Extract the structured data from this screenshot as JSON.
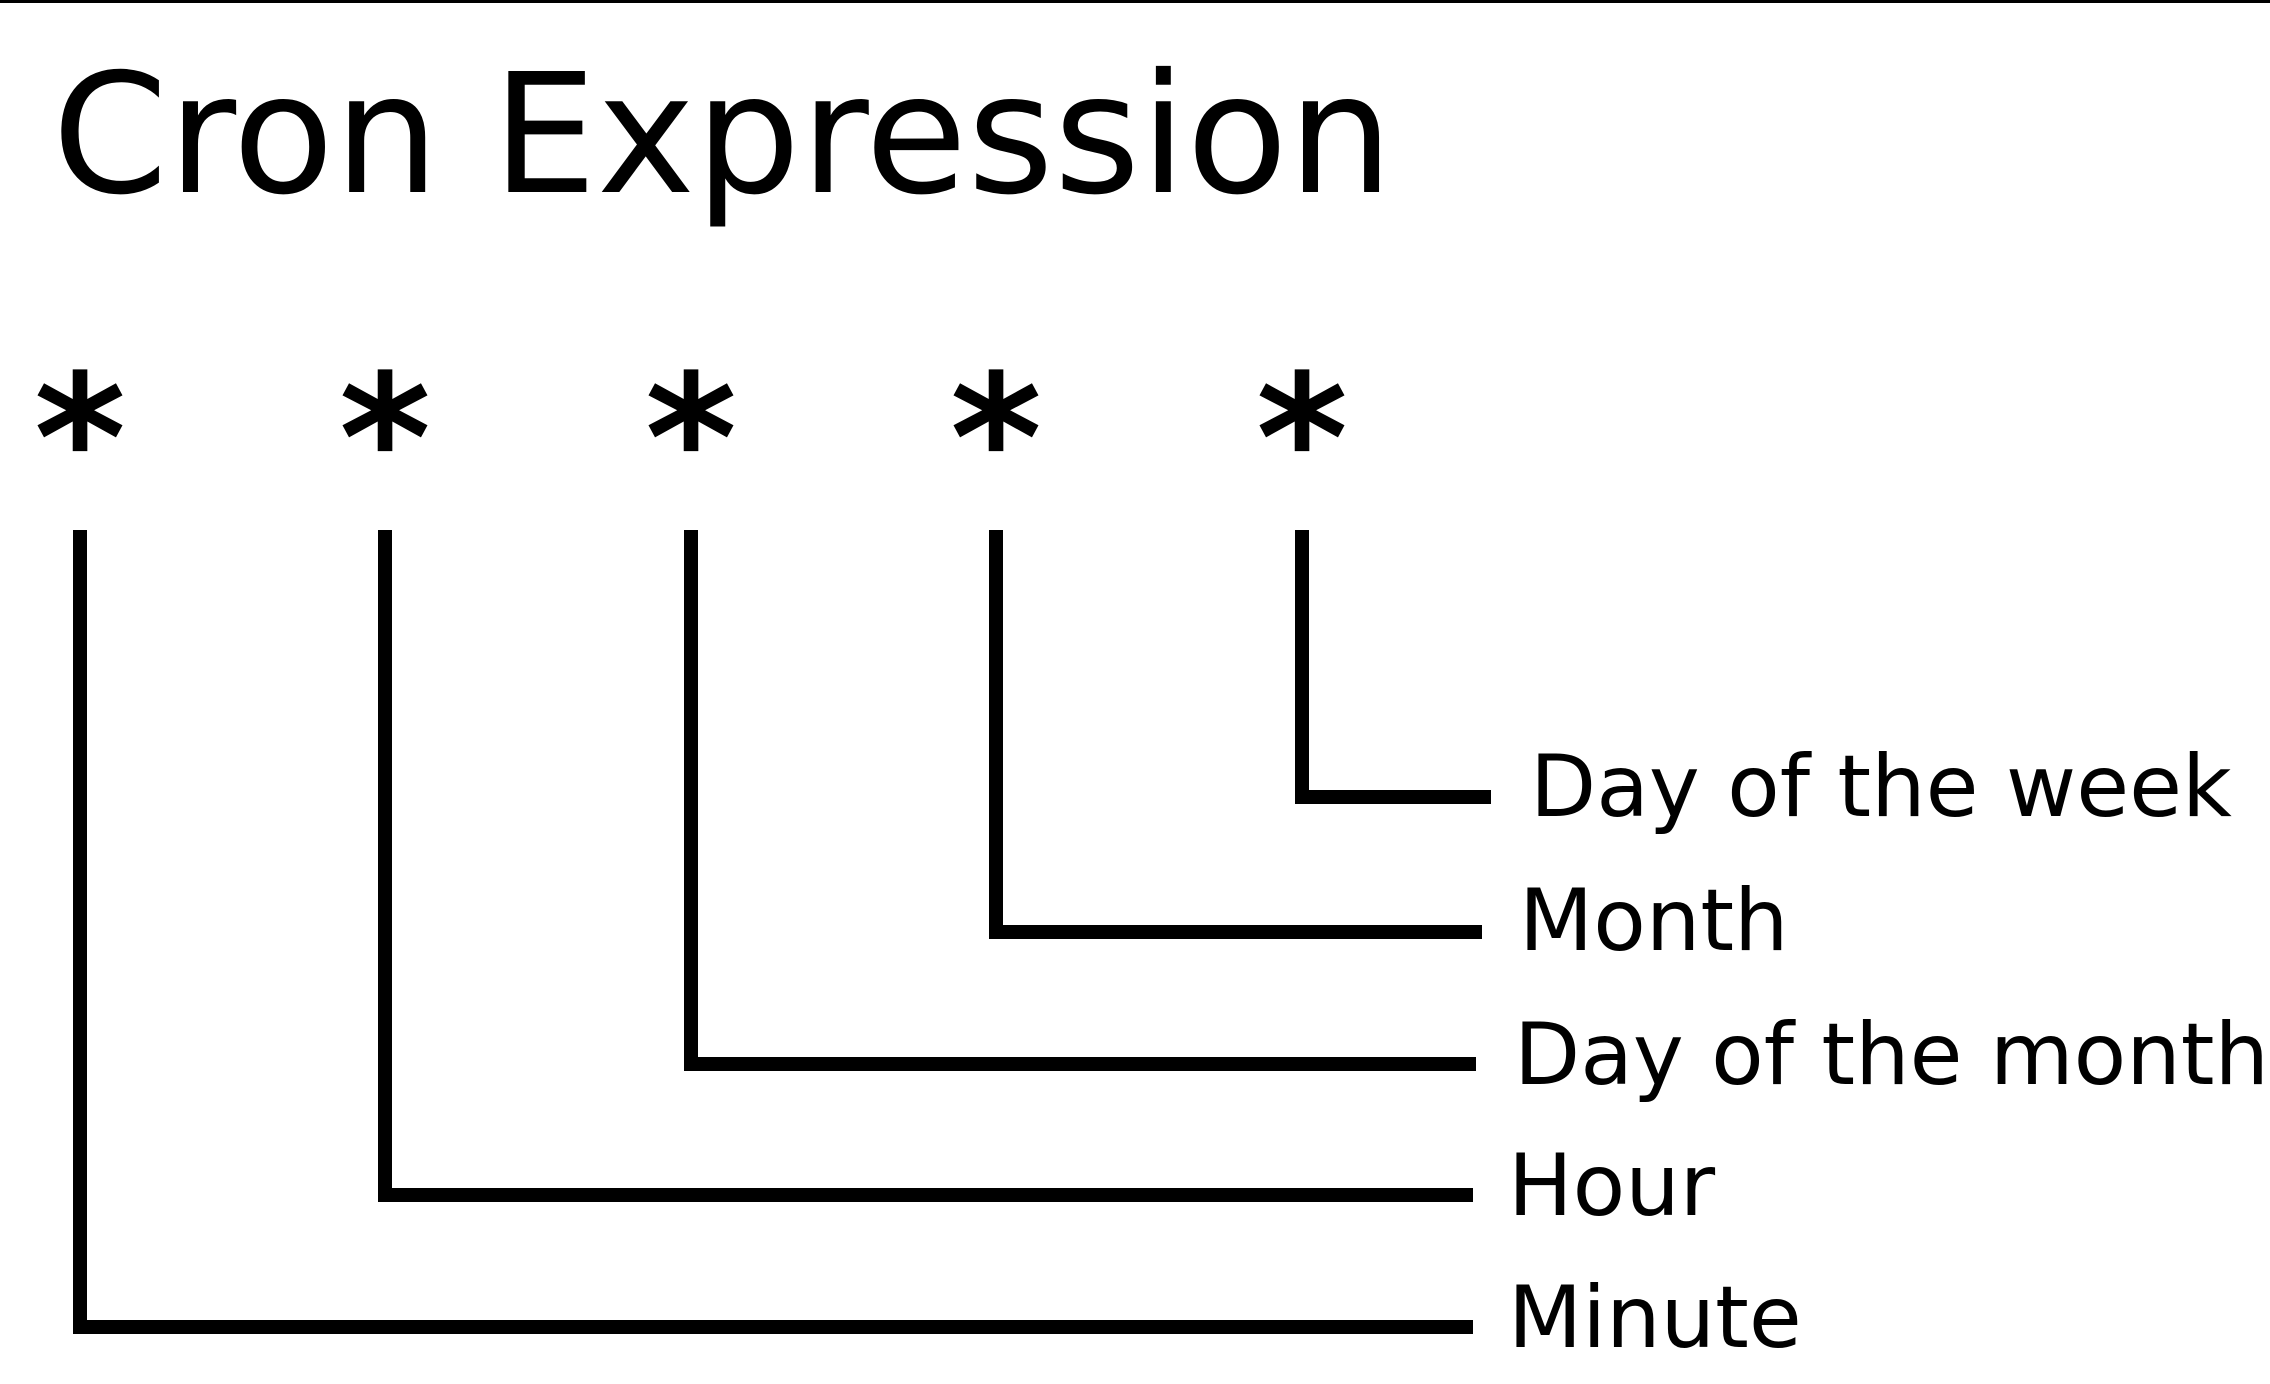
{
  "title": "Cron Expression",
  "fields": [
    {
      "symbol": "*",
      "label": "Minute"
    },
    {
      "symbol": "*",
      "label": "Hour"
    },
    {
      "symbol": "*",
      "label": "Day of the month"
    },
    {
      "symbol": "*",
      "label": "Month"
    },
    {
      "symbol": "*",
      "label": "Day of the week"
    }
  ],
  "colors": {
    "foreground": "#000000",
    "background": "#ffffff"
  }
}
